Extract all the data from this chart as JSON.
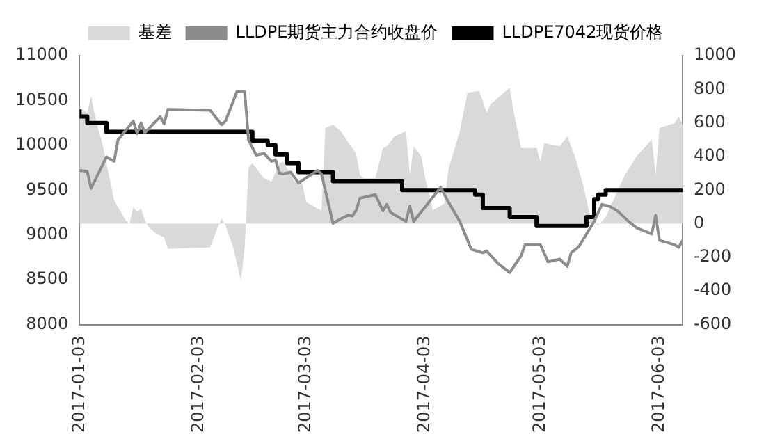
{
  "chart_data": {
    "type": "line",
    "xlim": [
      "2017-01-03",
      "2017-06-09"
    ],
    "xticks": [
      "2017-01-03",
      "2017-02-03",
      "2017-03-03",
      "2017-04-03",
      "2017-05-03",
      "2017-06-03"
    ],
    "ylim": [
      8000,
      11000
    ],
    "yticks": [
      8000,
      8500,
      9000,
      9500,
      10000,
      10500,
      11000
    ],
    "y2lim": [
      -600,
      1000
    ],
    "y2ticks": [
      -600,
      -400,
      -200,
      0,
      200,
      400,
      600,
      800,
      1000
    ],
    "grid": false,
    "legend": "top",
    "series": [
      {
        "name": "基差",
        "type": "area",
        "axis": "y2",
        "color": "#d9d9d9",
        "x": [
          "2017-01-03",
          "2017-01-05",
          "2017-01-06",
          "2017-01-07",
          "2017-01-09",
          "2017-01-12",
          "2017-01-15",
          "2017-01-16",
          "2017-01-17",
          "2017-01-18",
          "2017-01-19",
          "2017-01-20",
          "2017-01-21",
          "2017-01-23",
          "2017-01-25",
          "2017-01-26",
          "2017-02-06",
          "2017-02-08",
          "2017-02-09",
          "2017-02-10",
          "2017-02-12",
          "2017-02-14",
          "2017-02-15",
          "2017-02-16",
          "2017-02-17",
          "2017-02-20",
          "2017-02-22",
          "2017-02-24",
          "2017-02-25",
          "2017-02-28",
          "2017-03-02",
          "2017-03-03",
          "2017-03-06",
          "2017-03-07",
          "2017-03-08",
          "2017-03-10",
          "2017-03-12",
          "2017-03-15",
          "2017-03-16",
          "2017-03-17",
          "2017-03-18",
          "2017-03-21",
          "2017-03-23",
          "2017-03-24",
          "2017-03-26",
          "2017-03-29",
          "2017-03-30",
          "2017-03-31",
          "2017-04-02",
          "2017-04-03",
          "2017-04-05",
          "2017-04-08",
          "2017-04-09",
          "2017-04-12",
          "2017-04-14",
          "2017-04-17",
          "2017-04-18",
          "2017-04-19",
          "2017-04-20",
          "2017-04-22",
          "2017-04-25",
          "2017-04-26",
          "2017-04-28",
          "2017-05-02",
          "2017-05-03",
          "2017-05-04",
          "2017-05-08",
          "2017-05-10",
          "2017-05-12",
          "2017-05-14",
          "2017-05-16",
          "2017-05-18",
          "2017-05-20",
          "2017-05-25",
          "2017-05-28",
          "2017-06-01",
          "2017-06-02",
          "2017-06-03",
          "2017-06-07",
          "2017-06-08",
          "2017-06-09"
        ],
        "values": [
          690,
          660,
          760,
          640,
          470,
          140,
          20,
          0,
          100,
          70,
          90,
          20,
          -20,
          -60,
          -80,
          -150,
          -140,
          -20,
          30,
          -10,
          -140,
          -340,
          -140,
          330,
          360,
          270,
          250,
          360,
          370,
          250,
          240,
          130,
          90,
          80,
          570,
          590,
          550,
          450,
          420,
          290,
          270,
          270,
          450,
          460,
          520,
          550,
          290,
          460,
          400,
          270,
          80,
          120,
          320,
          550,
          780,
          790,
          730,
          660,
          710,
          750,
          810,
          670,
          450,
          450,
          370,
          480,
          460,
          520,
          400,
          240,
          40,
          -10,
          40,
          290,
          400,
          500,
          290,
          570,
          600,
          640,
          590
        ]
      },
      {
        "name": "LLDPE期货主力合约收盘价",
        "type": "line",
        "color": "#8c8c8c",
        "x": [
          "2017-01-03",
          "2017-01-05",
          "2017-01-06",
          "2017-01-10",
          "2017-01-12",
          "2017-01-13",
          "2017-01-17",
          "2017-01-18",
          "2017-01-19",
          "2017-01-20",
          "2017-01-24",
          "2017-01-25",
          "2017-01-26",
          "2017-02-06",
          "2017-02-09",
          "2017-02-10",
          "2017-02-13",
          "2017-02-15",
          "2017-02-16",
          "2017-02-18",
          "2017-02-20",
          "2017-02-22",
          "2017-02-23",
          "2017-02-24",
          "2017-02-25",
          "2017-02-27",
          "2017-03-01",
          "2017-03-06",
          "2017-03-07",
          "2017-03-10",
          "2017-03-12",
          "2017-03-14",
          "2017-03-15",
          "2017-03-16",
          "2017-03-17",
          "2017-03-21",
          "2017-03-23",
          "2017-03-24",
          "2017-03-25",
          "2017-03-29",
          "2017-03-30",
          "2017-03-31",
          "2017-04-07",
          "2017-04-09",
          "2017-04-12",
          "2017-04-15",
          "2017-04-18",
          "2017-04-19",
          "2017-04-22",
          "2017-04-25",
          "2017-04-28",
          "2017-04-29",
          "2017-05-03",
          "2017-05-05",
          "2017-05-08",
          "2017-05-10",
          "2017-05-11",
          "2017-05-13",
          "2017-05-17",
          "2017-05-19",
          "2017-05-21",
          "2017-05-23",
          "2017-05-26",
          "2017-05-28",
          "2017-06-01",
          "2017-06-02",
          "2017-06-03",
          "2017-06-07",
          "2017-06-08",
          "2017-06-09"
        ],
        "values": [
          9720,
          9710,
          9520,
          9870,
          9820,
          10060,
          10270,
          10130,
          10250,
          10140,
          10320,
          10240,
          10400,
          10390,
          10230,
          10270,
          10600,
          10600,
          10060,
          9890,
          9910,
          9820,
          9840,
          9690,
          9680,
          9700,
          9580,
          9720,
          9680,
          9130,
          9180,
          9220,
          9210,
          9270,
          9410,
          9450,
          9270,
          9340,
          9250,
          9150,
          9320,
          9150,
          9530,
          9370,
          9150,
          8840,
          8800,
          8820,
          8680,
          8580,
          8770,
          8890,
          8890,
          8700,
          8730,
          8650,
          8800,
          8870,
          9150,
          9340,
          9320,
          9270,
          9150,
          9080,
          9010,
          9220,
          8940,
          8890,
          8860,
          8940
        ]
      },
      {
        "name": "LLDPE7042现货价格",
        "type": "step",
        "color": "#000000",
        "x": [
          "2017-01-03",
          "2017-01-05",
          "2017-01-10",
          "2017-02-17",
          "2017-02-21",
          "2017-02-23",
          "2017-02-26",
          "2017-03-01",
          "2017-03-10",
          "2017-03-28",
          "2017-04-16",
          "2017-04-18",
          "2017-04-25",
          "2017-05-02",
          "2017-05-15",
          "2017-05-17",
          "2017-05-18",
          "2017-05-20",
          "2017-05-22",
          "2017-06-09"
        ],
        "values": [
          10400,
          10320,
          10250,
          10150,
          10050,
          10000,
          9900,
          9800,
          9700,
          9600,
          9500,
          9450,
          9300,
          9200,
          9100,
          9200,
          9400,
          9450,
          9500,
          9500
        ]
      }
    ]
  }
}
